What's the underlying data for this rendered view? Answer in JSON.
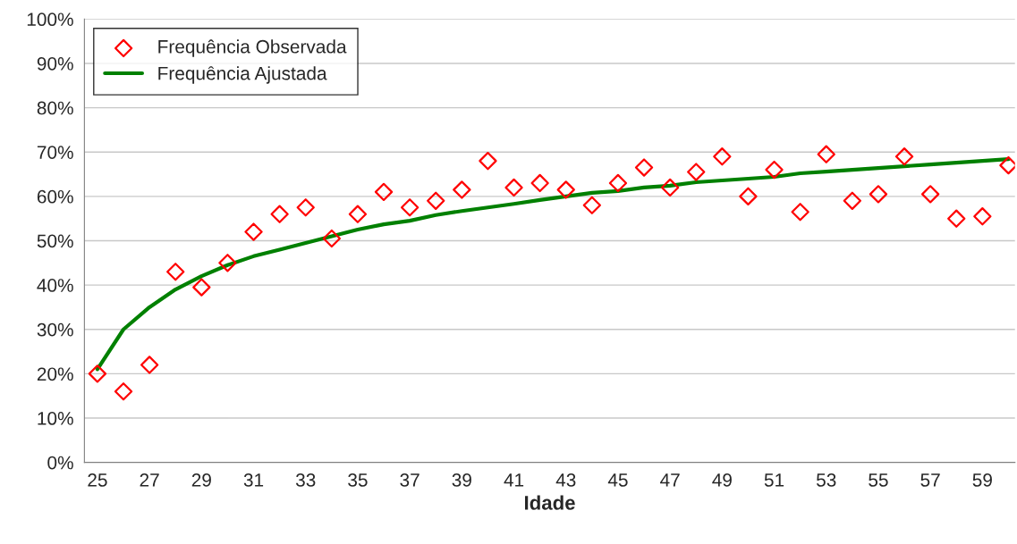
{
  "chart_data": {
    "type": "line",
    "xlabel": "Idade",
    "categories": [
      "25",
      null,
      "27",
      null,
      "29",
      null,
      "31",
      null,
      "33",
      null,
      "35",
      null,
      "37",
      null,
      "39",
      null,
      "41",
      null,
      "43",
      null,
      "45",
      null,
      "47",
      null,
      "49",
      null,
      "51",
      null,
      "53",
      null,
      "55",
      null,
      "57",
      null,
      "59",
      null
    ],
    "series": [
      {
        "name": "Frequência Observada",
        "type": "scatter",
        "color": "#ff0000",
        "marker": "diamond",
        "values": [
          20,
          16,
          22,
          43,
          39.5,
          45,
          52,
          56,
          57.5,
          50.5,
          56,
          61,
          57.5,
          59,
          61.5,
          68,
          62,
          63,
          61.5,
          58,
          63,
          66.5,
          62,
          65.5,
          69,
          60,
          66,
          56.5,
          69.5,
          59,
          60.5,
          69,
          60.5,
          55,
          55.5,
          67
        ]
      },
      {
        "name": "Frequência Ajustada",
        "color": "#008000",
        "marker": "none",
        "line_style": "solid",
        "values": [
          21,
          30,
          35,
          39,
          42,
          44.5,
          46.5,
          48,
          49.5,
          51,
          52.5,
          53.7,
          54.5,
          55.8,
          56.7,
          57.5,
          58.3,
          59.2,
          60,
          60.8,
          61.2,
          62,
          62.4,
          63.2,
          63.6,
          64,
          64.4,
          65.2,
          65.6,
          66,
          66.4,
          66.8,
          67.2,
          67.6,
          68,
          68.4
        ]
      }
    ],
    "ylim": [
      0,
      100
    ],
    "yticks": [
      {
        "value": 0,
        "label": "0%"
      },
      {
        "value": 10,
        "label": "10%"
      },
      {
        "value": 20,
        "label": "20%"
      },
      {
        "value": 30,
        "label": "30%"
      },
      {
        "value": 40,
        "label": "40%"
      },
      {
        "value": 50,
        "label": "50%"
      },
      {
        "value": 60,
        "label": "60%"
      },
      {
        "value": 70,
        "label": "70%"
      },
      {
        "value": 80,
        "label": "80%"
      },
      {
        "value": 90,
        "label": "90%"
      },
      {
        "value": 100,
        "label": "100%"
      }
    ],
    "grid": "y",
    "legend": "top left"
  }
}
